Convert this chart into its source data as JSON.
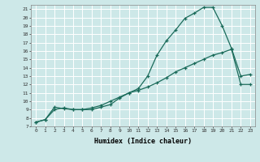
{
  "xlabel": "Humidex (Indice chaleur)",
  "bg_color": "#cde8e8",
  "grid_color": "#ffffff",
  "line_color": "#1a6b5a",
  "xlim": [
    -0.5,
    23.5
  ],
  "ylim": [
    7,
    21.5
  ],
  "xticks": [
    0,
    1,
    2,
    3,
    4,
    5,
    6,
    7,
    8,
    9,
    10,
    11,
    12,
    13,
    14,
    15,
    16,
    17,
    18,
    19,
    20,
    21,
    22,
    23
  ],
  "yticks": [
    7,
    8,
    9,
    10,
    11,
    12,
    13,
    14,
    15,
    16,
    17,
    18,
    19,
    20,
    21
  ],
  "line1_x": [
    0,
    1,
    2,
    3,
    4,
    5,
    6,
    7,
    8,
    9,
    10,
    11,
    12,
    13,
    14,
    15,
    16,
    17,
    18,
    19,
    20,
    21,
    22,
    23
  ],
  "line1_y": [
    7.5,
    7.8,
    9.3,
    9.1,
    9.0,
    9.0,
    9.0,
    9.3,
    9.6,
    10.4,
    11.0,
    11.5,
    13.0,
    15.5,
    17.2,
    18.5,
    19.9,
    20.5,
    21.2,
    21.2,
    19.0,
    16.3,
    13.0,
    13.2
  ],
  "line2_x": [
    0,
    1,
    2,
    3,
    4,
    5,
    6,
    7,
    8,
    9,
    10,
    11,
    12,
    13,
    14,
    15,
    16,
    17,
    18,
    19,
    20,
    21,
    22,
    23
  ],
  "line2_y": [
    7.5,
    7.8,
    9.0,
    9.2,
    9.0,
    9.0,
    9.2,
    9.5,
    10.0,
    10.5,
    11.0,
    11.3,
    11.7,
    12.2,
    12.8,
    13.5,
    14.0,
    14.5,
    15.0,
    15.5,
    15.8,
    16.2,
    12.0,
    12.0
  ]
}
